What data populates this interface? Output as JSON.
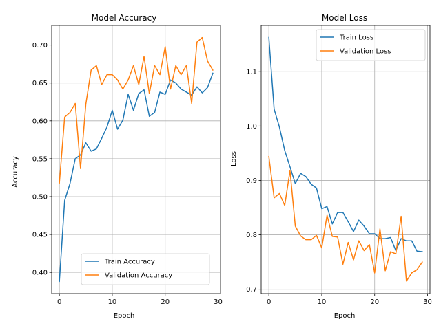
{
  "chart_data": [
    {
      "type": "line",
      "title": "Model Accuracy",
      "xlabel": "Epoch",
      "ylabel": "Accuracy",
      "xlim": [
        -1.45,
        30.45
      ],
      "ylim": [
        0.372,
        0.726
      ],
      "xticks": [
        "0",
        "10",
        "20",
        "30"
      ],
      "xtick_values": [
        0,
        10,
        20,
        30
      ],
      "yticks": [
        "0.40",
        "0.45",
        "0.50",
        "0.55",
        "0.60",
        "0.65",
        "0.70"
      ],
      "ytick_values": [
        0.4,
        0.45,
        0.5,
        0.55,
        0.6,
        0.65,
        0.7
      ],
      "grid": true,
      "legend_position": "lower-right",
      "x": [
        0,
        1,
        2,
        3,
        4,
        5,
        6,
        7,
        8,
        9,
        10,
        11,
        12,
        13,
        14,
        15,
        16,
        17,
        18,
        19,
        20,
        21,
        22,
        23,
        24,
        25,
        26,
        27,
        28,
        29
      ],
      "series": [
        {
          "name": "Train Accuracy",
          "color": "#1f77b4",
          "values": [
            0.388,
            0.495,
            0.517,
            0.55,
            0.555,
            0.571,
            0.56,
            0.563,
            0.577,
            0.592,
            0.614,
            0.589,
            0.601,
            0.635,
            0.614,
            0.636,
            0.641,
            0.606,
            0.611,
            0.638,
            0.635,
            0.654,
            0.65,
            0.642,
            0.638,
            0.634,
            0.645,
            0.637,
            0.644,
            0.663
          ]
        },
        {
          "name": "Validation Accuracy",
          "color": "#ff7f0e",
          "values": [
            0.518,
            0.605,
            0.611,
            0.623,
            0.537,
            0.622,
            0.667,
            0.673,
            0.648,
            0.661,
            0.661,
            0.654,
            0.642,
            0.654,
            0.673,
            0.648,
            0.685,
            0.636,
            0.673,
            0.661,
            0.698,
            0.642,
            0.673,
            0.661,
            0.673,
            0.623,
            0.704,
            0.71,
            0.679,
            0.667
          ]
        }
      ]
    },
    {
      "type": "line",
      "title": "Model Loss",
      "xlabel": "Epoch",
      "ylabel": "Loss",
      "xlim": [
        -1.45,
        30.45
      ],
      "ylim": [
        0.692,
        1.185
      ],
      "xticks": [
        "0",
        "10",
        "20",
        "30"
      ],
      "xtick_values": [
        0,
        10,
        20,
        30
      ],
      "yticks": [
        "0.7",
        "0.8",
        "0.9",
        "1.0",
        "1.1"
      ],
      "ytick_values": [
        0.7,
        0.8,
        0.9,
        1.0,
        1.1
      ],
      "grid": true,
      "legend_position": "upper-right",
      "x": [
        0,
        1,
        2,
        3,
        4,
        5,
        6,
        7,
        8,
        9,
        10,
        11,
        12,
        13,
        14,
        15,
        16,
        17,
        18,
        19,
        20,
        21,
        22,
        23,
        24,
        25,
        26,
        27,
        28,
        29
      ],
      "series": [
        {
          "name": "Train Loss",
          "color": "#1f77b4",
          "values": [
            1.163,
            1.031,
            0.998,
            0.955,
            0.925,
            0.894,
            0.913,
            0.907,
            0.893,
            0.886,
            0.848,
            0.852,
            0.82,
            0.841,
            0.841,
            0.824,
            0.806,
            0.827,
            0.816,
            0.802,
            0.802,
            0.793,
            0.793,
            0.795,
            0.771,
            0.793,
            0.789,
            0.789,
            0.77,
            0.769
          ]
        },
        {
          "name": "Validation Loss",
          "color": "#ff7f0e",
          "values": [
            0.944,
            0.868,
            0.876,
            0.854,
            0.918,
            0.816,
            0.798,
            0.791,
            0.791,
            0.799,
            0.776,
            0.836,
            0.797,
            0.796,
            0.746,
            0.786,
            0.754,
            0.789,
            0.771,
            0.782,
            0.73,
            0.811,
            0.734,
            0.769,
            0.765,
            0.834,
            0.715,
            0.73,
            0.736,
            0.75
          ]
        }
      ]
    }
  ]
}
